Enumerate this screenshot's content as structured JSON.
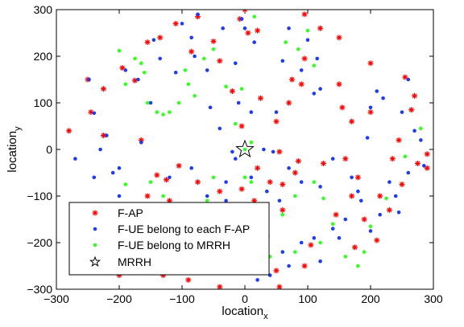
{
  "chart_data": {
    "type": "scatter",
    "xlabel": "location",
    "xlabel_sub": "x",
    "ylabel": "location",
    "ylabel_sub": "y",
    "xlim": [
      -300,
      300
    ],
    "ylim": [
      -300,
      300
    ],
    "xticks": [
      -300,
      -200,
      -100,
      0,
      100,
      200,
      300
    ],
    "yticks": [
      -300,
      -200,
      -100,
      0,
      100,
      200,
      300
    ],
    "grid": false,
    "legend_position": "lower-left",
    "colors": {
      "fap": "#ff0000",
      "fue": "#1f3df0",
      "mrrh_ue": "#33ff22",
      "mrrh": "#000000"
    },
    "series": [
      {
        "name": "F-AP",
        "marker": "asterisk",
        "points": [
          [
            -250,
            150
          ],
          [
            -225,
            130
          ],
          [
            -195,
            175
          ],
          [
            -175,
            148
          ],
          [
            -155,
            230
          ],
          [
            -135,
            240
          ],
          [
            -110,
            270
          ],
          [
            -85,
            210
          ],
          [
            -75,
            285
          ],
          [
            -50,
            232
          ],
          [
            -40,
            190
          ],
          [
            -20,
            125
          ],
          [
            -5,
            50
          ],
          [
            -8,
            280
          ],
          [
            0,
            300
          ],
          [
            5,
            250
          ],
          [
            20,
            255
          ],
          [
            25,
            110
          ],
          [
            50,
            60
          ],
          [
            55,
            -5
          ],
          [
            70,
            100
          ],
          [
            75,
            150
          ],
          [
            90,
            140
          ],
          [
            95,
            195
          ],
          [
            95,
            290
          ],
          [
            125,
            -30
          ],
          [
            120,
            260
          ],
          [
            150,
            240
          ],
          [
            150,
            140
          ],
          [
            155,
            90
          ],
          [
            160,
            -20
          ],
          [
            170,
            -100
          ],
          [
            175,
            -210
          ],
          [
            180,
            -60
          ],
          [
            200,
            80
          ],
          [
            200,
            185
          ],
          [
            210,
            -195
          ],
          [
            230,
            -130
          ],
          [
            235,
            -20
          ],
          [
            245,
            20
          ],
          [
            250,
            -75
          ],
          [
            255,
            155
          ],
          [
            265,
            85
          ],
          [
            270,
            115
          ],
          [
            275,
            -30
          ],
          [
            290,
            -40
          ],
          [
            290,
            -10
          ],
          [
            -280,
            40
          ],
          [
            -245,
            80
          ],
          [
            -225,
            30
          ],
          [
            -165,
            20
          ],
          [
            -125,
            -65
          ],
          [
            -120,
            -110
          ],
          [
            -70,
            -155
          ],
          [
            -20,
            -145
          ],
          [
            -5,
            -85
          ],
          [
            -5,
            -215
          ],
          [
            10,
            -260
          ],
          [
            35,
            -185
          ],
          [
            50,
            -260
          ],
          [
            55,
            -295
          ],
          [
            60,
            -130
          ],
          [
            95,
            -250
          ],
          [
            105,
            -205
          ],
          [
            -90,
            -280
          ],
          [
            -40,
            -295
          ],
          [
            -200,
            -270
          ],
          [
            -130,
            -270
          ],
          [
            -30,
            -180
          ],
          [
            -105,
            -35
          ],
          [
            -40,
            -90
          ],
          [
            -95,
            -220
          ],
          [
            40,
            -70
          ],
          [
            15,
            -110
          ],
          [
            -195,
            -130
          ],
          [
            -155,
            -100
          ],
          [
            -140,
            -55
          ],
          [
            -75,
            -70
          ],
          [
            85,
            -25
          ],
          [
            60,
            -75
          ],
          [
            20,
            -40
          ],
          [
            80,
            -50
          ],
          [
            170,
            60
          ],
          [
            215,
            -100
          ],
          [
            145,
            -140
          ],
          [
            190,
            -150
          ]
        ]
      },
      {
        "name": "F-UE belong to each F-AP",
        "marker": "dot",
        "points": [
          [
            -248,
            150
          ],
          [
            -240,
            78
          ],
          [
            -220,
            30
          ],
          [
            -190,
            170
          ],
          [
            -170,
            150
          ],
          [
            -165,
            15
          ],
          [
            -150,
            100
          ],
          [
            -145,
            235
          ],
          [
            -135,
            195
          ],
          [
            -110,
            165
          ],
          [
            -100,
            270
          ],
          [
            -85,
            240
          ],
          [
            -80,
            200
          ],
          [
            -75,
            290
          ],
          [
            -60,
            170
          ],
          [
            -55,
            90
          ],
          [
            -40,
            45
          ],
          [
            -35,
            260
          ],
          [
            -15,
            185
          ],
          [
            -10,
            100
          ],
          [
            -5,
            280
          ],
          [
            0,
            260
          ],
          [
            15,
            230
          ],
          [
            10,
            80
          ],
          [
            -20,
            -5
          ],
          [
            30,
            0
          ],
          [
            45,
            -5
          ],
          [
            50,
            80
          ],
          [
            60,
            190
          ],
          [
            70,
            260
          ],
          [
            90,
            170
          ],
          [
            100,
            235
          ],
          [
            110,
            120
          ],
          [
            115,
            195
          ],
          [
            120,
            130
          ],
          [
            140,
            -20
          ],
          [
            170,
            -60
          ],
          [
            180,
            -90
          ],
          [
            195,
            25
          ],
          [
            200,
            90
          ],
          [
            210,
            125
          ],
          [
            220,
            110
          ],
          [
            230,
            -70
          ],
          [
            245,
            -135
          ],
          [
            250,
            80
          ],
          [
            260,
            150
          ],
          [
            270,
            40
          ],
          [
            280,
            20
          ],
          [
            285,
            -35
          ],
          [
            -270,
            -20
          ],
          [
            -230,
            0
          ],
          [
            -210,
            -50
          ],
          [
            -200,
            -100
          ],
          [
            -170,
            -150
          ],
          [
            -160,
            -190
          ],
          [
            -110,
            -210
          ],
          [
            -80,
            -170
          ],
          [
            -70,
            -190
          ],
          [
            -60,
            -160
          ],
          [
            -40,
            -150
          ],
          [
            -30,
            -110
          ],
          [
            -10,
            -200
          ],
          [
            0,
            -210
          ],
          [
            20,
            -280
          ],
          [
            30,
            -240
          ],
          [
            40,
            -270
          ],
          [
            60,
            -220
          ],
          [
            70,
            -250
          ],
          [
            90,
            -200
          ],
          [
            110,
            -190
          ],
          [
            120,
            -240
          ],
          [
            140,
            -170
          ],
          [
            160,
            -150
          ],
          [
            150,
            -190
          ],
          [
            -240,
            -60
          ],
          [
            -200,
            -40
          ],
          [
            -150,
            -130
          ],
          [
            -120,
            -60
          ],
          [
            -85,
            -40
          ],
          [
            -60,
            -100
          ],
          [
            -50,
            -140
          ],
          [
            -30,
            -70
          ],
          [
            -15,
            -20
          ],
          [
            10,
            -60
          ],
          [
            35,
            -90
          ],
          [
            55,
            -110
          ],
          [
            70,
            -40
          ],
          [
            90,
            -70
          ],
          [
            120,
            -80
          ],
          [
            185,
            -110
          ],
          [
            200,
            -175
          ],
          [
            215,
            -140
          ],
          [
            240,
            -100
          ],
          [
            260,
            -50
          ]
        ]
      },
      {
        "name": "F-UE belong to MRRH",
        "marker": "dot",
        "points": [
          [
            -200,
            212
          ],
          [
            -190,
            140
          ],
          [
            -175,
            195
          ],
          [
            -165,
            185
          ],
          [
            -160,
            165
          ],
          [
            -155,
            100
          ],
          [
            -140,
            80
          ],
          [
            -130,
            75
          ],
          [
            -120,
            80
          ],
          [
            -105,
            100
          ],
          [
            -95,
            170
          ],
          [
            -90,
            140
          ],
          [
            -80,
            115
          ],
          [
            -65,
            195
          ],
          [
            -50,
            215
          ],
          [
            -30,
            135
          ],
          [
            -15,
            55
          ],
          [
            -5,
            130
          ],
          [
            10,
            15
          ],
          [
            15,
            285
          ],
          [
            65,
            230
          ],
          [
            85,
            215
          ],
          [
            100,
            255
          ],
          [
            110,
            180
          ],
          [
            -310,
            -45
          ],
          [
            -190,
            -75
          ],
          [
            -150,
            -70
          ],
          [
            -130,
            -100
          ],
          [
            -110,
            -130
          ],
          [
            -90,
            -120
          ],
          [
            -60,
            -110
          ],
          [
            -50,
            -60
          ],
          [
            0,
            -60
          ],
          [
            10,
            -70
          ],
          [
            30,
            -160
          ],
          [
            60,
            -140
          ],
          [
            80,
            -100
          ],
          [
            110,
            -70
          ],
          [
            125,
            -105
          ],
          [
            140,
            -160
          ],
          [
            190,
            -220
          ],
          [
            200,
            -165
          ],
          [
            225,
            -105
          ],
          [
            255,
            -15
          ],
          [
            280,
            45
          ],
          [
            -200,
            -230
          ],
          [
            -170,
            -230
          ],
          [
            -140,
            -230
          ],
          [
            -100,
            -260
          ],
          [
            -60,
            -250
          ],
          [
            -30,
            -240
          ],
          [
            0,
            -260
          ],
          [
            40,
            -230
          ],
          [
            80,
            -220
          ],
          [
            120,
            -200
          ],
          [
            160,
            -230
          ],
          [
            180,
            -250
          ],
          [
            -240,
            -230
          ]
        ]
      },
      {
        "name": "MRRH",
        "marker": "pentagram",
        "points": [
          [
            0,
            0
          ]
        ]
      }
    ]
  }
}
